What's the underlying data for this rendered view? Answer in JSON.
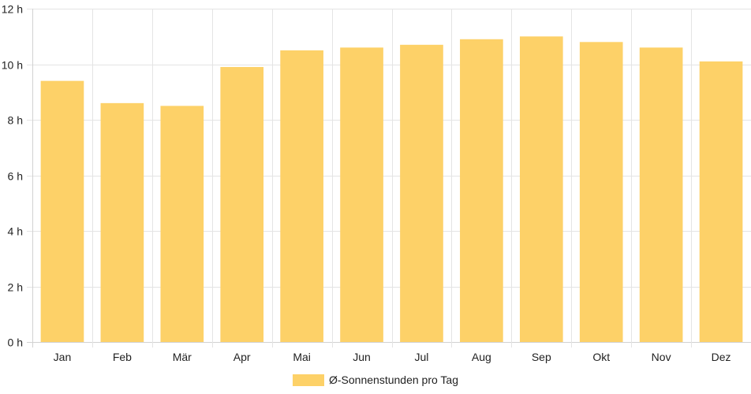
{
  "chart_data": {
    "type": "bar",
    "categories": [
      "Jan",
      "Feb",
      "Mär",
      "Apr",
      "Mai",
      "Jun",
      "Jul",
      "Aug",
      "Sep",
      "Okt",
      "Nov",
      "Dez"
    ],
    "series": [
      {
        "name": "Ø-Sonnenstunden pro Tag",
        "values": [
          9.4,
          8.6,
          8.5,
          9.9,
          10.5,
          10.6,
          10.7,
          10.9,
          11.0,
          10.8,
          10.6,
          10.1
        ]
      }
    ],
    "ylim": [
      0,
      12
    ],
    "y_ticks": [
      "0 h",
      "2 h",
      "4 h",
      "6 h",
      "8 h",
      "10 h",
      "12 h"
    ],
    "grid": true,
    "legend_position": "bottom",
    "colors": {
      "bar": "#fdd168"
    }
  }
}
